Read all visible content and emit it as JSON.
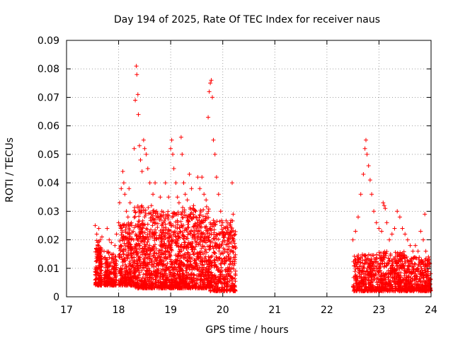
{
  "chart_data": {
    "type": "scatter",
    "title": "Day 194 of 2025, Rate Of TEC Index for receiver naus",
    "xlabel": "GPS time / hours",
    "ylabel": "ROTI / TECUs",
    "xlim": [
      17,
      24
    ],
    "ylim": [
      0,
      0.09
    ],
    "x_ticks": [
      "17",
      "18",
      "19",
      "20",
      "21",
      "22",
      "23",
      "24"
    ],
    "y_ticks": [
      "0",
      "0.01",
      "0.02",
      "0.03",
      "0.04",
      "0.05",
      "0.06",
      "0.07",
      "0.08",
      "0.09"
    ],
    "grid": true,
    "marker": "plus",
    "marker_color": "#ff0000",
    "series": [
      {
        "values": [
          [
            17.55,
            0.025
          ],
          [
            17.58,
            0.022
          ],
          [
            17.6,
            0.018
          ],
          [
            17.62,
            0.024
          ],
          [
            17.65,
            0.02
          ],
          [
            17.68,
            0.021
          ],
          [
            17.72,
            0.016
          ],
          [
            17.75,
            0.013
          ],
          [
            17.78,
            0.024
          ],
          [
            17.82,
            0.02
          ],
          [
            17.86,
            0.019
          ],
          [
            17.9,
            0.015
          ],
          [
            17.93,
            0.018
          ],
          [
            17.96,
            0.022
          ],
          [
            18.0,
            0.026
          ],
          [
            18.02,
            0.033
          ],
          [
            18.05,
            0.038
          ],
          [
            18.08,
            0.044
          ],
          [
            18.1,
            0.04
          ],
          [
            18.12,
            0.036
          ],
          [
            18.15,
            0.03
          ],
          [
            18.18,
            0.028
          ],
          [
            18.2,
            0.038
          ],
          [
            18.22,
            0.033
          ],
          [
            18.25,
            0.025
          ],
          [
            18.28,
            0.023
          ],
          [
            18.3,
            0.052
          ],
          [
            18.32,
            0.069
          ],
          [
            18.34,
            0.081
          ],
          [
            18.35,
            0.078
          ],
          [
            18.37,
            0.071
          ],
          [
            18.38,
            0.064
          ],
          [
            18.4,
            0.053
          ],
          [
            18.42,
            0.048
          ],
          [
            18.45,
            0.044
          ],
          [
            18.48,
            0.055
          ],
          [
            18.5,
            0.052
          ],
          [
            18.53,
            0.05
          ],
          [
            18.56,
            0.045
          ],
          [
            18.6,
            0.04
          ],
          [
            18.63,
            0.032
          ],
          [
            18.66,
            0.036
          ],
          [
            18.7,
            0.04
          ],
          [
            18.73,
            0.03
          ],
          [
            18.76,
            0.028
          ],
          [
            18.8,
            0.035
          ],
          [
            18.83,
            0.03
          ],
          [
            18.86,
            0.026
          ],
          [
            18.9,
            0.04
          ],
          [
            18.93,
            0.028
          ],
          [
            18.96,
            0.035
          ],
          [
            19.0,
            0.052
          ],
          [
            19.02,
            0.055
          ],
          [
            19.04,
            0.05
          ],
          [
            19.06,
            0.045
          ],
          [
            19.1,
            0.04
          ],
          [
            19.13,
            0.035
          ],
          [
            19.16,
            0.033
          ],
          [
            19.2,
            0.056
          ],
          [
            19.22,
            0.05
          ],
          [
            19.25,
            0.04
          ],
          [
            19.28,
            0.036
          ],
          [
            19.32,
            0.034
          ],
          [
            19.36,
            0.043
          ],
          [
            19.4,
            0.038
          ],
          [
            19.44,
            0.032
          ],
          [
            19.48,
            0.03
          ],
          [
            19.52,
            0.042
          ],
          [
            19.56,
            0.038
          ],
          [
            19.6,
            0.042
          ],
          [
            19.64,
            0.036
          ],
          [
            19.68,
            0.034
          ],
          [
            19.72,
            0.063
          ],
          [
            19.74,
            0.072
          ],
          [
            19.76,
            0.075
          ],
          [
            19.78,
            0.076
          ],
          [
            19.8,
            0.07
          ],
          [
            19.82,
            0.055
          ],
          [
            19.85,
            0.05
          ],
          [
            19.88,
            0.042
          ],
          [
            19.92,
            0.036
          ],
          [
            19.96,
            0.03
          ],
          [
            20.0,
            0.026
          ],
          [
            20.05,
            0.024
          ],
          [
            20.1,
            0.022
          ],
          [
            20.15,
            0.026
          ],
          [
            20.18,
            0.04
          ],
          [
            20.2,
            0.029
          ],
          [
            22.5,
            0.02
          ],
          [
            22.55,
            0.023
          ],
          [
            22.6,
            0.028
          ],
          [
            22.65,
            0.036
          ],
          [
            22.7,
            0.043
          ],
          [
            22.73,
            0.052
          ],
          [
            22.75,
            0.055
          ],
          [
            22.77,
            0.05
          ],
          [
            22.8,
            0.046
          ],
          [
            22.83,
            0.041
          ],
          [
            22.86,
            0.036
          ],
          [
            22.9,
            0.03
          ],
          [
            22.95,
            0.026
          ],
          [
            23.0,
            0.024
          ],
          [
            23.05,
            0.023
          ],
          [
            23.08,
            0.033
          ],
          [
            23.1,
            0.032
          ],
          [
            23.12,
            0.031
          ],
          [
            23.15,
            0.026
          ],
          [
            23.2,
            0.02
          ],
          [
            23.25,
            0.022
          ],
          [
            23.3,
            0.024
          ],
          [
            23.35,
            0.03
          ],
          [
            23.4,
            0.028
          ],
          [
            23.45,
            0.024
          ],
          [
            23.5,
            0.022
          ],
          [
            23.55,
            0.02
          ],
          [
            23.6,
            0.018
          ],
          [
            23.65,
            0.016
          ],
          [
            23.7,
            0.018
          ],
          [
            23.75,
            0.016
          ],
          [
            23.8,
            0.023
          ],
          [
            23.85,
            0.02
          ],
          [
            23.88,
            0.029
          ],
          [
            23.9,
            0.016
          ],
          [
            23.95,
            0.014
          ]
        ],
        "dense_bands": [
          {
            "x": [
              17.55,
              17.68
            ],
            "y": [
              0.004,
              0.02
            ],
            "count": 160
          },
          {
            "x": [
              17.72,
              17.96
            ],
            "y": [
              0.004,
              0.016
            ],
            "count": 200
          },
          {
            "x": [
              18.0,
              18.3
            ],
            "y": [
              0.004,
              0.026
            ],
            "count": 280
          },
          {
            "x": [
              18.3,
              18.7
            ],
            "y": [
              0.003,
              0.032
            ],
            "count": 420
          },
          {
            "x": [
              18.7,
              19.2
            ],
            "y": [
              0.003,
              0.03
            ],
            "count": 520
          },
          {
            "x": [
              19.2,
              19.75
            ],
            "y": [
              0.003,
              0.032
            ],
            "count": 560
          },
          {
            "x": [
              19.75,
              20.25
            ],
            "y": [
              0.002,
              0.027
            ],
            "count": 420
          },
          {
            "x": [
              22.5,
              23.0
            ],
            "y": [
              0.002,
              0.015
            ],
            "count": 320
          },
          {
            "x": [
              23.0,
              23.5
            ],
            "y": [
              0.002,
              0.016
            ],
            "count": 360
          },
          {
            "x": [
              23.5,
              24.0
            ],
            "y": [
              0.002,
              0.014
            ],
            "count": 360
          }
        ]
      }
    ]
  }
}
